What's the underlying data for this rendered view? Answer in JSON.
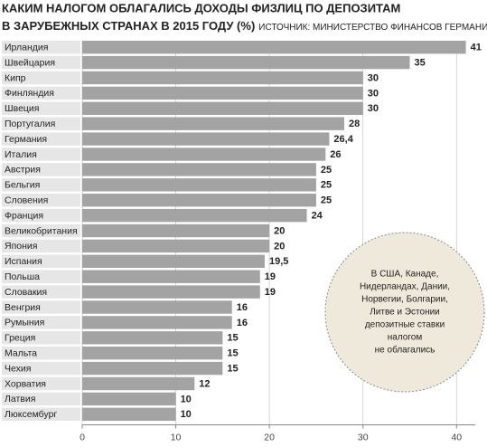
{
  "chart_data": {
    "type": "bar",
    "orientation": "horizontal",
    "title": "КАКИМ НАЛОГОМ ОБЛАГАЛИСЬ ДОХОДЫ ФИЗЛИЦ ПО ДЕПОЗИТАМ",
    "title_line2": "В ЗАРУБЕЖНЫХ СТРАНАХ В 2015 ГОДУ (%)",
    "source": "ИСТОЧНИК: МИНИСТЕРСТВО ФИНАНСОВ ГЕРМАНИИ.",
    "categories": [
      "Ирландия",
      "Швейцария",
      "Кипр",
      "Финляндия",
      "Швеция",
      "Португалия",
      "Германия",
      "Италия",
      "Австрия",
      "Бельгия",
      "Словения",
      "Франция",
      "Великобритания",
      "Япония",
      "Испания",
      "Польша",
      "Словакия",
      "Венгрия",
      "Румыния",
      "Греция",
      "Мальта",
      "Чехия",
      "Хорватия",
      "Латвия",
      "Люксембург"
    ],
    "values": [
      41,
      35,
      30,
      30,
      30,
      28,
      26.4,
      26,
      25,
      25,
      25,
      24,
      20,
      20,
      19.5,
      19,
      19,
      16,
      16,
      15,
      15,
      15,
      12,
      10,
      10
    ],
    "value_labels": [
      "41",
      "35",
      "30",
      "30",
      "30",
      "28",
      "26,4",
      "26",
      "25",
      "25",
      "25",
      "24",
      "20",
      "20",
      "19,5",
      "19",
      "19",
      "16",
      "16",
      "15",
      "15",
      "15",
      "12",
      "10",
      "10"
    ],
    "color": "#a3a3a3",
    "xlim": [
      0,
      42
    ],
    "xticks": [
      0,
      10,
      20,
      30,
      40
    ],
    "grid": true,
    "annotation": [
      "В США, Канаде,",
      "Нидерландах, Дании,",
      "Норвегии, Болгарии,",
      "Литве и Эстонии",
      "депозитные ставки",
      "налогом",
      "не облагались"
    ]
  }
}
